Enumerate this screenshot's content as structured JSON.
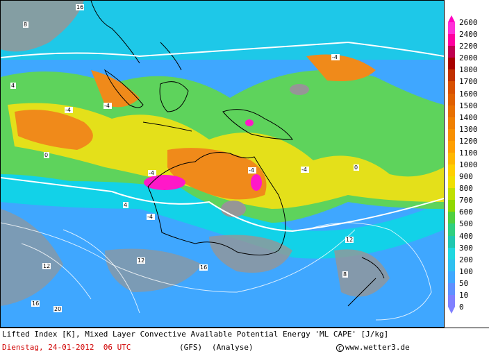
{
  "map": {
    "contour_labels_shown": [
      "0",
      "4",
      "8",
      "12",
      "16",
      "20",
      "-4"
    ],
    "region": "Indian Ocean, Maritime Continent, Australia, New Zealand",
    "colors": {
      "ocean_low": "#3fa7ff",
      "cyan": "#12d2e8",
      "green": "#5ed35c",
      "yellow": "#e4e01a",
      "orange": "#f08a1a",
      "magenta": "#ff18c8",
      "land_grey": "#969696",
      "contour": "#ffffff"
    }
  },
  "legend": {
    "labels": [
      "2600",
      "2400",
      "2200",
      "2000",
      "1800",
      "1700",
      "1600",
      "1500",
      "1400",
      "1300",
      "1200",
      "1100",
      "1000",
      "900",
      "800",
      "700",
      "600",
      "500",
      "400",
      "300",
      "200",
      "100",
      "50",
      "10",
      "0"
    ],
    "colors": [
      "#ff00c0",
      "#ff30d8",
      "#ff00a0",
      "#c00050",
      "#a80000",
      "#c03000",
      "#d85000",
      "#e06000",
      "#e87000",
      "#f08000",
      "#f89000",
      "#ffa000",
      "#ffb800",
      "#ffd000",
      "#f0e000",
      "#c0e000",
      "#90d800",
      "#50d040",
      "#30d080",
      "#20c8b0",
      "#20d8e0",
      "#30c0f0",
      "#40a8ff",
      "#6090ff",
      "#8080ff"
    ]
  },
  "caption": {
    "line1": "Lifted Index [K], Mixed Layer Convective Available Potential Energy 'ML CAPE' [J/kg]",
    "date": "Dienstag, 24-01-2012  06 UTC",
    "model": "(GFS)",
    "analysis": "(Analyse)",
    "copyright_symbol": "C",
    "site": "www.wetter3.de"
  }
}
